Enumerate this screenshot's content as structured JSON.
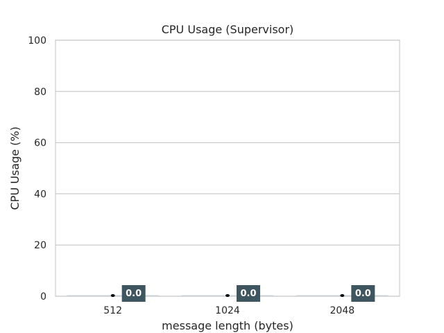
{
  "chart_data": {
    "type": "bar",
    "title": "CPU Usage (Supervisor)",
    "xlabel": "message length (bytes)",
    "ylabel": "CPU Usage (%)",
    "categories": [
      "512",
      "1024",
      "2048"
    ],
    "values": [
      0.0,
      0.0,
      0.0
    ],
    "data_labels": [
      "0.0",
      "0.0",
      "0.0"
    ],
    "ylim": [
      0,
      100
    ],
    "yticks": [
      0,
      20,
      40,
      60,
      80,
      100
    ],
    "grid": true,
    "colors": {
      "bar": "#c7d3d9",
      "label_box": "#3f5560",
      "error_bar": "#000000",
      "grid": "#cccccc",
      "frame": "#cccccc"
    }
  }
}
